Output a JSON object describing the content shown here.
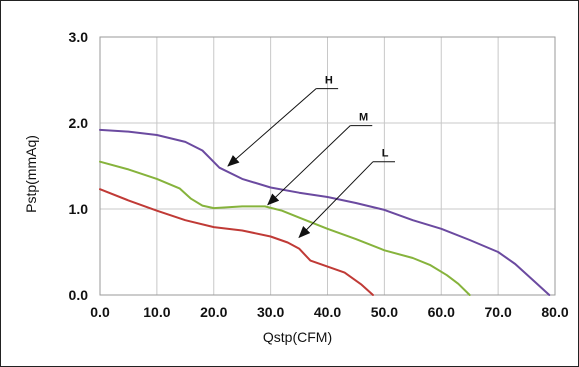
{
  "chart_data": {
    "type": "line",
    "xlabel": "Qstp(CFM)",
    "ylabel": "Pstp(mmAq)",
    "xlim": [
      0,
      80
    ],
    "ylim": [
      0,
      3
    ],
    "x_ticks": [
      "0.0",
      "10.0",
      "20.0",
      "30.0",
      "40.0",
      "50.0",
      "60.0",
      "70.0",
      "80.0"
    ],
    "y_ticks": [
      "0.0",
      "1.0",
      "2.0",
      "3.0"
    ],
    "grid": true,
    "series": [
      {
        "name": "H",
        "color": "#6b4aa0",
        "points": [
          [
            0,
            1.92
          ],
          [
            5,
            1.9
          ],
          [
            10,
            1.86
          ],
          [
            15,
            1.78
          ],
          [
            18,
            1.68
          ],
          [
            19.5,
            1.58
          ],
          [
            21,
            1.48
          ],
          [
            25,
            1.35
          ],
          [
            30,
            1.25
          ],
          [
            35,
            1.19
          ],
          [
            40,
            1.14
          ],
          [
            45,
            1.07
          ],
          [
            50,
            0.99
          ],
          [
            55,
            0.87
          ],
          [
            60,
            0.77
          ],
          [
            65,
            0.64
          ],
          [
            70,
            0.5
          ],
          [
            73,
            0.36
          ],
          [
            76,
            0.18
          ],
          [
            79,
            0.0
          ]
        ]
      },
      {
        "name": "M",
        "color": "#86b33c",
        "points": [
          [
            0,
            1.55
          ],
          [
            5,
            1.46
          ],
          [
            10,
            1.35
          ],
          [
            14,
            1.24
          ],
          [
            16,
            1.12
          ],
          [
            18,
            1.04
          ],
          [
            20,
            1.01
          ],
          [
            25,
            1.03
          ],
          [
            29,
            1.03
          ],
          [
            32,
            0.98
          ],
          [
            35,
            0.9
          ],
          [
            40,
            0.77
          ],
          [
            45,
            0.65
          ],
          [
            50,
            0.52
          ],
          [
            55,
            0.43
          ],
          [
            58,
            0.35
          ],
          [
            61,
            0.23
          ],
          [
            63,
            0.13
          ],
          [
            65,
            0.0
          ]
        ]
      },
      {
        "name": "L",
        "color": "#c03a36",
        "points": [
          [
            0,
            1.23
          ],
          [
            5,
            1.1
          ],
          [
            10,
            0.98
          ],
          [
            15,
            0.87
          ],
          [
            20,
            0.79
          ],
          [
            25,
            0.75
          ],
          [
            30,
            0.68
          ],
          [
            33,
            0.61
          ],
          [
            35,
            0.54
          ],
          [
            37,
            0.4
          ],
          [
            40,
            0.33
          ],
          [
            43,
            0.26
          ],
          [
            46,
            0.12
          ],
          [
            48,
            0.0
          ]
        ]
      }
    ],
    "annotations": [
      {
        "label": "H",
        "arrow_from": [
          38,
          2.4
        ],
        "arrow_to": [
          22.5,
          1.5
        ],
        "label_at": [
          39,
          2.4
        ]
      },
      {
        "label": "M",
        "arrow_from": [
          44,
          1.97
        ],
        "arrow_to": [
          29.5,
          1.05
        ],
        "label_at": [
          45,
          1.97
        ]
      },
      {
        "label": "L",
        "arrow_from": [
          48,
          1.55
        ],
        "arrow_to": [
          35,
          0.67
        ],
        "label_at": [
          49,
          1.55
        ]
      }
    ]
  }
}
